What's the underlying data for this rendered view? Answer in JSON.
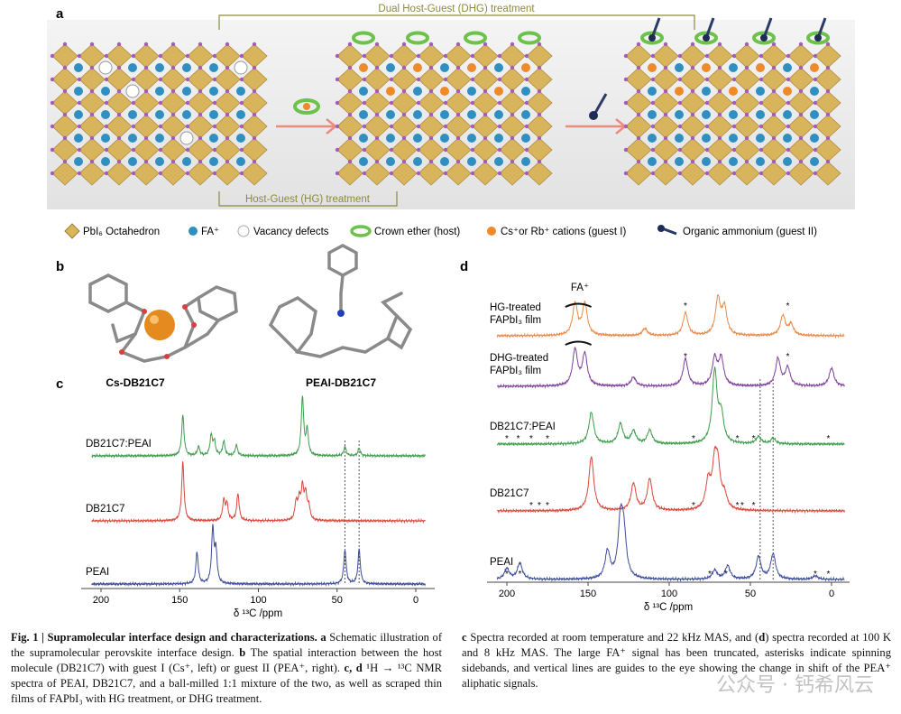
{
  "panel_labels": [
    "a",
    "b",
    "c",
    "d"
  ],
  "panel_a": {
    "top_bracket": "Dual Host-Guest (DHG) treatment",
    "bottom_bracket": "Host-Guest (HG) treatment",
    "legend": [
      "PbI₆ Octahedron",
      "FA⁺",
      "Vacancy defects",
      "Crown ether (host)",
      "Cs⁺or Rb⁺ cations (guest I)",
      "Organic ammonium (guest II)"
    ]
  },
  "panel_b": {
    "labels": [
      "Cs-DB21C7",
      "PEAI-DB21C7"
    ]
  },
  "panel_c": {
    "xticks": [
      200,
      150,
      100,
      50,
      0
    ],
    "xlabel": "δ ¹³C /ppm",
    "guide_lines": [
      45,
      36
    ],
    "spectra": [
      {
        "name": "DB21C7:PEAI",
        "color": "#3f9b4c",
        "peaks": [
          {
            "ppm": 148,
            "h": 45
          },
          {
            "ppm": 138,
            "h": 10
          },
          {
            "ppm": 130,
            "h": 22
          },
          {
            "ppm": 128,
            "h": 15
          },
          {
            "ppm": 122,
            "h": 16
          },
          {
            "ppm": 114,
            "h": 12
          },
          {
            "ppm": 72,
            "h": 65
          },
          {
            "ppm": 69,
            "h": 28
          },
          {
            "ppm": 45,
            "h": 10
          },
          {
            "ppm": 36,
            "h": 8
          }
        ]
      },
      {
        "name": "DB21C7",
        "color": "#d9483c",
        "peaks": [
          {
            "ppm": 148,
            "h": 65
          },
          {
            "ppm": 122,
            "h": 22
          },
          {
            "ppm": 120,
            "h": 18
          },
          {
            "ppm": 113,
            "h": 30
          },
          {
            "ppm": 76,
            "h": 20
          },
          {
            "ppm": 74,
            "h": 22
          },
          {
            "ppm": 72,
            "h": 35
          },
          {
            "ppm": 70,
            "h": 28
          },
          {
            "ppm": 68,
            "h": 15
          }
        ]
      },
      {
        "name": "PEAI",
        "color": "#3d4b9c",
        "peaks": [
          {
            "ppm": 139,
            "h": 35
          },
          {
            "ppm": 129,
            "h": 60
          },
          {
            "ppm": 127,
            "h": 35
          },
          {
            "ppm": 45,
            "h": 38
          },
          {
            "ppm": 36,
            "h": 38
          }
        ]
      }
    ]
  },
  "panel_d": {
    "xticks": [
      200,
      150,
      100,
      50,
      0
    ],
    "xlabel": "δ ¹³C /ppm",
    "fa_label": "FA⁺",
    "sideband_symbol": "*",
    "guide_lines": [
      44,
      36
    ],
    "spectra": [
      {
        "name": [
          "HG-treated",
          "FAPbI₃ film"
        ],
        "color": "#e8894a",
        "peaks": [
          {
            "ppm": 158,
            "h": 35
          },
          {
            "ppm": 152,
            "h": 35
          },
          {
            "ppm": 115,
            "h": 8
          },
          {
            "ppm": 90,
            "h": 25
          },
          {
            "ppm": 70,
            "h": 40
          },
          {
            "ppm": 66,
            "h": 30
          },
          {
            "ppm": 30,
            "h": 22
          },
          {
            "ppm": 25,
            "h": 12
          }
        ],
        "sidebands": [
          90,
          27
        ]
      },
      {
        "name": [
          "DHG-treated",
          "FAPbI₃ film"
        ],
        "color": "#7e3f9b",
        "peaks": [
          {
            "ppm": 158,
            "h": 40
          },
          {
            "ppm": 152,
            "h": 35
          },
          {
            "ppm": 122,
            "h": 10
          },
          {
            "ppm": 90,
            "h": 30
          },
          {
            "ppm": 72,
            "h": 30
          },
          {
            "ppm": 68,
            "h": 30
          },
          {
            "ppm": 33,
            "h": 30
          },
          {
            "ppm": 27,
            "h": 20
          },
          {
            "ppm": 0,
            "h": 20
          }
        ],
        "sidebands": [
          90,
          27
        ]
      },
      {
        "name": [
          "DB21C7:PEAI"
        ],
        "color": "#3f9b4c",
        "peaks": [
          {
            "ppm": 148,
            "h": 35
          },
          {
            "ppm": 130,
            "h": 22
          },
          {
            "ppm": 122,
            "h": 14
          },
          {
            "ppm": 112,
            "h": 15
          },
          {
            "ppm": 72,
            "h": 80
          },
          {
            "ppm": 68,
            "h": 30
          },
          {
            "ppm": 45,
            "h": 8
          },
          {
            "ppm": 36,
            "h": 6
          }
        ],
        "sidebands": [
          200,
          193,
          185,
          175,
          85,
          58,
          48,
          2
        ]
      },
      {
        "name": [
          "DB21C7"
        ],
        "color": "#d9483c",
        "peaks": [
          {
            "ppm": 148,
            "h": 60
          },
          {
            "ppm": 122,
            "h": 30
          },
          {
            "ppm": 112,
            "h": 35
          },
          {
            "ppm": 76,
            "h": 30
          },
          {
            "ppm": 72,
            "h": 45
          },
          {
            "ppm": 70,
            "h": 40
          },
          {
            "ppm": 66,
            "h": 15
          }
        ],
        "sidebands": [
          185,
          180,
          175,
          85,
          58,
          55,
          48
        ]
      },
      {
        "name": [
          "PEAI"
        ],
        "color": "#3d4b9c",
        "peaks": [
          {
            "ppm": 200,
            "h": 12
          },
          {
            "ppm": 192,
            "h": 18
          },
          {
            "ppm": 138,
            "h": 30
          },
          {
            "ppm": 130,
            "h": 60
          },
          {
            "ppm": 128,
            "h": 45
          },
          {
            "ppm": 72,
            "h": 10
          },
          {
            "ppm": 64,
            "h": 15
          },
          {
            "ppm": 45,
            "h": 25
          },
          {
            "ppm": 36,
            "h": 28
          },
          {
            "ppm": 10,
            "h": 4
          }
        ],
        "sidebands": [
          200,
          192,
          75,
          65,
          10,
          2
        ]
      }
    ]
  },
  "caption": {
    "left": [
      {
        "text": "Fig. 1 | Supramolecular interface design and characterizations.",
        "bold": true
      },
      {
        "text": " a ",
        "bold": true
      },
      {
        "text": "Schematic illustration of the supramolecular perovskite interface design. ",
        "bold": false
      },
      {
        "text": "b",
        "bold": true
      },
      {
        "text": " The spatial interaction between the host molecule (DB21C7) with guest I (Cs⁺, left) or guest II (PEA⁺, right). ",
        "bold": false
      },
      {
        "text": "c, d",
        "bold": true
      },
      {
        "text": " ¹H → ¹³C NMR spectra of PEAI, DB21C7, and a ball-milled 1:1 mixture of the two, as well as scraped thin films of FAPbI₃ with HG treatment, or DHG treatment.",
        "bold": false
      }
    ],
    "right": [
      {
        "text": "c",
        "bold": true
      },
      {
        "text": " Spectra recorded at room temperature and 22 kHz MAS, and (",
        "bold": false
      },
      {
        "text": "d",
        "bold": true
      },
      {
        "text": ") spectra recorded at 100 K and 8 kHz MAS. The large FA⁺ signal has been truncated, asterisks indicate spinning sidebands, and vertical lines are guides to the eye showing the change in shift of the PEA⁺ aliphatic signals.",
        "bold": false
      }
    ]
  },
  "watermark": "公众号 · 钙希风云"
}
